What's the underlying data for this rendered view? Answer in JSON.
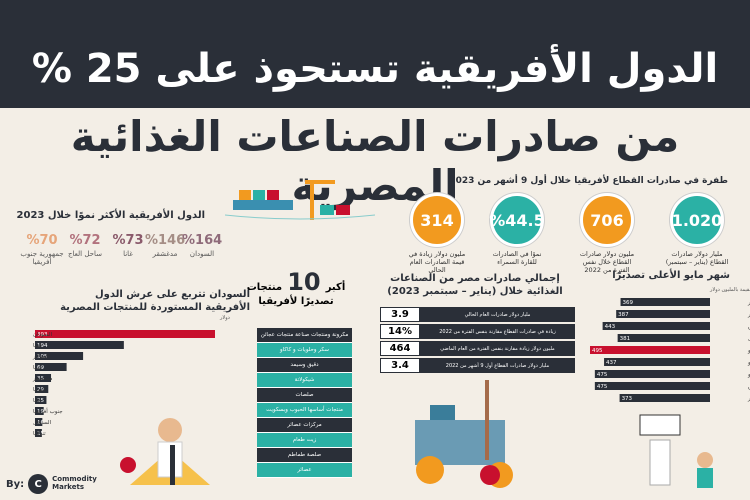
{
  "header": {
    "title_line1": "الدول الأفريقية تستحوذ على 25 %",
    "title_line2": "من صادرات الصناعات الغذائية المصرية"
  },
  "leap": {
    "title": "طفرة في صادرات القطاع لأفريقيا خلال أول 9 أشهر من 2023",
    "stats": [
      {
        "value": "314",
        "caption": "مليون دولار زيادة في قيمة الصادرات العام الحالي",
        "color": "#f29a1f"
      },
      {
        "value": "%44.5",
        "caption": "نموًا في الصادرات للقارة السمراء",
        "color": "#2bb1a5"
      },
      {
        "value": "706",
        "caption": "مليون دولار صادرات القطاع خلال نفس الفترة من 2022",
        "color": "#f29a1f"
      },
      {
        "value": "1.020",
        "caption": "مليار دولار صادرات القطاع (يناير – سبتمبر)",
        "color": "#2bb1a5"
      }
    ]
  },
  "growth": {
    "title": "الدول الأفريقية الأكثر نموًا خلال 2023",
    "items": [
      {
        "value": "%70",
        "label": "جمهورية جنوب أفريقيا",
        "color": "#e6a57a"
      },
      {
        "value": "%72",
        "label": "ساحل العاج",
        "color": "#b2727d"
      },
      {
        "value": "%73",
        "label": "غانا",
        "color": "#8a5a6b"
      },
      {
        "value": "%146",
        "label": "مدغشقر",
        "color": "#a58e86"
      },
      {
        "value": "%164",
        "label": "السودان",
        "color": "#8f6b7a"
      }
    ]
  },
  "sudan_chart": {
    "title": "السودان تتربع على عرش الدول الأفريقية المستوردة للمنتجات المصرية",
    "unit": "القيمة بالمليون دولار"
  },
  "top10": {
    "title_num": "10",
    "title_a": "أكبر",
    "title_b": "منتجات",
    "title_c": "تصديرًا لأفريقيا",
    "items": [
      "مكرونة ومنتجات صناعة منتجات عجائن",
      "سكر وحلويات و كاكاو",
      "دقيق وسيمد",
      "شيكولاتة",
      "صلصات",
      "منتجات أساسها الحبوب وبسكويت",
      "مركزات عصائر",
      "زيت طعام",
      "صلصة طماطم",
      "عصائر"
    ]
  },
  "egypt": {
    "title": "إجمالي صادرات مصر من الصناعات الغذائية خلال (يناير – سبتمبر 2023)",
    "rows": [
      {
        "value": "3.9",
        "label": "مليار دولار صادرات العام الحالي"
      },
      {
        "value": "14%",
        "label": "زيادة في صادرات القطاع مقارنة بنفس الفترة من 2022"
      },
      {
        "value": "464",
        "label": "مليون دولار زيادة مقارنة بنفس الفترة من العام الماضي"
      },
      {
        "value": "3.4",
        "label": "مليار دولار صادرات القطاع أول 9 أشهر من 2022"
      }
    ]
  },
  "monthly_chart": {
    "title": "شهر مايو الأعلى تصديرًا",
    "unit": "القيمة بالمليون دولار"
  },
  "footer": {
    "by": "By:",
    "logo_letter": "C",
    "logo_line1": "Commodity",
    "logo_line2": "Markets"
  },
  "chart_data": [
    {
      "type": "bar",
      "orientation": "horizontal",
      "title": "السودان تتربع على عرش الدول الأفريقية المستوردة للمنتجات المصرية",
      "xlabel": "القيمة بالمليون دولار",
      "categories": [
        "السودان",
        "ليبيا",
        "الجزائر",
        "كينيا",
        "مدغشقر",
        "إثيوبيا",
        "غانا",
        "جنوب أفريقيا",
        "السنغال",
        "تنزانيا"
      ],
      "values": [
        393,
        194,
        105,
        69,
        35,
        29,
        25,
        19,
        16,
        15
      ],
      "highlight_color": "#c8102e",
      "base_color": "#2a2f38"
    },
    {
      "type": "bar",
      "orientation": "horizontal",
      "title": "شهر مايو الأعلى تصديرًا",
      "xlabel": "القيمة بالمليون دولار",
      "categories": [
        "يناير",
        "فبراير",
        "مارس",
        "أبريل",
        "مايو",
        "يونيو",
        "يوليو",
        "أغسطس",
        "سبتمبر"
      ],
      "values": [
        369,
        387,
        443,
        381,
        495,
        437,
        475,
        475,
        373
      ],
      "highlight_color": "#c8102e",
      "base_color": "#2a2f38"
    }
  ]
}
